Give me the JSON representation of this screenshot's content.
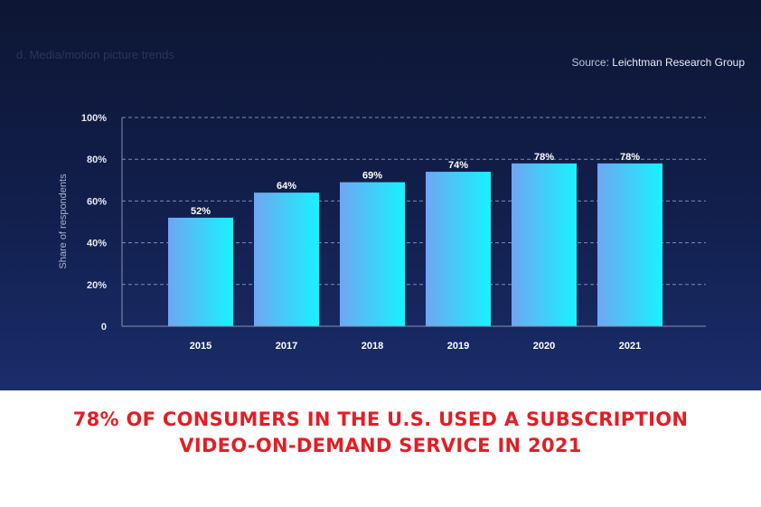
{
  "caption": "d. Media/motion picture trends",
  "source": {
    "prefix": "Source:",
    "name": "Leichtman Research Group"
  },
  "headline": {
    "line1": "78% OF CONSUMERS IN THE U.S. USED A SUBSCRIPTION",
    "line2": "VIDEO-ON-DEMAND SERVICE IN 2021"
  },
  "colors": {
    "bar_start": "#6fa6f2",
    "bar_end": "#16f3ff",
    "headline": "#e31e24",
    "background": "#121f4d"
  },
  "chart_data": {
    "type": "bar",
    "categories": [
      "2015",
      "2017",
      "2018",
      "2019",
      "2020",
      "2021"
    ],
    "values": [
      52,
      64,
      69,
      74,
      78,
      78
    ],
    "data_labels": [
      "52%",
      "64%",
      "69%",
      "74%",
      "78%",
      "78%"
    ],
    "ylabel": "Share of respondents",
    "xlabel": "",
    "ylim": [
      0,
      100
    ],
    "yticks": [
      0,
      20,
      40,
      60,
      80,
      100
    ],
    "ytick_labels": [
      "0",
      "20%",
      "40%",
      "60%",
      "80%",
      "100%"
    ],
    "grid": true
  }
}
